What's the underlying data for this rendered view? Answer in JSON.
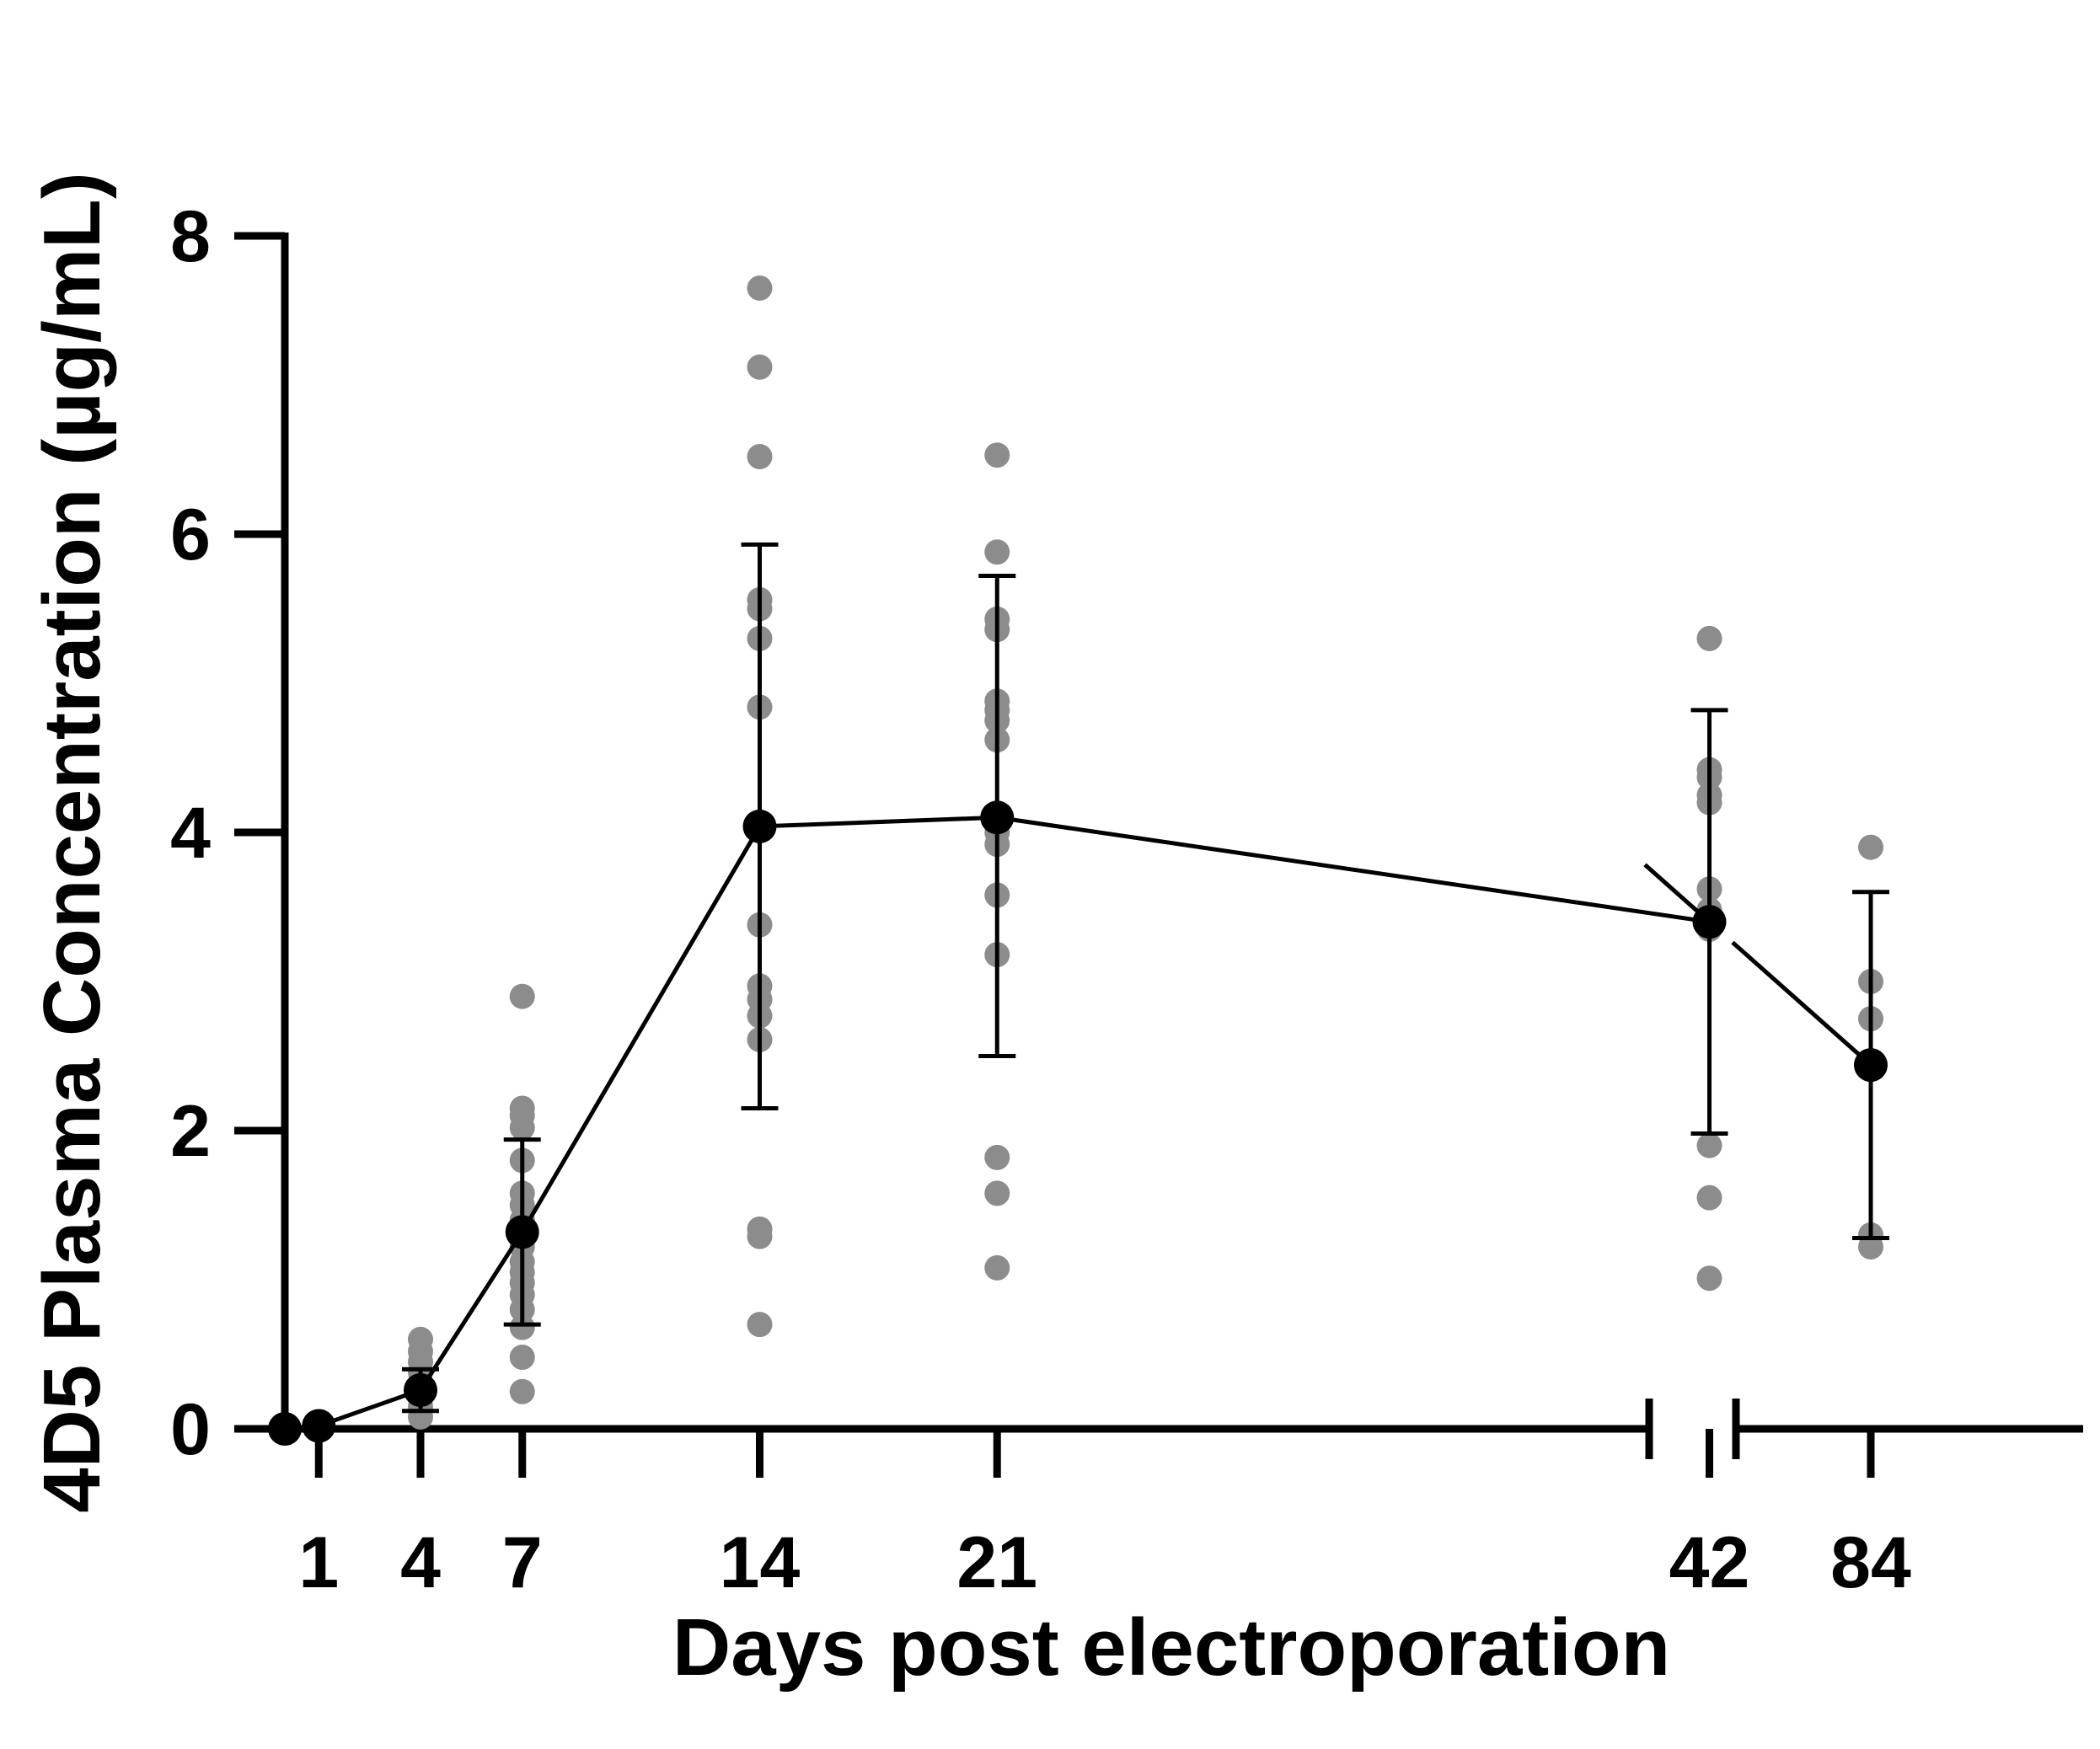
{
  "chart_data": {
    "type": "scatter",
    "xlabel": "Days post electroporation",
    "ylabel": "4D5 Plasma Concentration (µg/mL)",
    "ylim": [
      0,
      8
    ],
    "yticks": [
      "0",
      "2",
      "4",
      "6",
      "8"
    ],
    "x_axis_break": {
      "between": [
        42,
        84
      ]
    },
    "xticks": [
      "1",
      "4",
      "7",
      "14",
      "21",
      "42",
      "84"
    ],
    "grid": false,
    "legend": "none",
    "colors": {
      "mean": "#000000",
      "individual": "#8c8c8c"
    },
    "mean_series": {
      "x": [
        0,
        1,
        4,
        7,
        14,
        21,
        42,
        84
      ],
      "y": [
        0,
        0.02,
        0.26,
        1.32,
        4.04,
        4.1,
        3.4,
        2.44
      ],
      "err_low": [
        null,
        null,
        0.12,
        0.7,
        2.15,
        2.5,
        1.98,
        1.28
      ],
      "err_high": [
        null,
        null,
        0.4,
        1.94,
        5.93,
        5.72,
        4.82,
        3.6
      ]
    },
    "individual_points": [
      {
        "x": 4,
        "values": [
          0.6,
          0.52,
          0.45,
          0.38,
          0.3,
          0.22,
          0.15,
          0.08
        ]
      },
      {
        "x": 7,
        "values": [
          2.9,
          2.15,
          2.1,
          2.02,
          1.8,
          1.58,
          1.5,
          1.4,
          1.3,
          1.22,
          1.12,
          1.05,
          0.98,
          0.9,
          0.8,
          0.68,
          0.48,
          0.25
        ]
      },
      {
        "x": 14,
        "values": [
          7.65,
          7.12,
          6.52,
          5.56,
          5.5,
          5.3,
          4.84,
          4.05,
          3.38,
          2.97,
          2.88,
          2.77,
          2.61,
          1.34,
          1.29,
          0.7
        ]
      },
      {
        "x": 21,
        "values": [
          6.53,
          5.88,
          5.43,
          5.36,
          4.88,
          4.82,
          4.75,
          4.62,
          4.0,
          3.92,
          3.58,
          3.18,
          1.82,
          1.58,
          1.08
        ]
      },
      {
        "x": 42,
        "values": [
          5.3,
          4.42,
          4.37,
          4.25,
          4.2,
          3.62,
          3.48,
          3.35,
          1.9,
          1.55,
          1.01
        ]
      },
      {
        "x": 84,
        "values": [
          3.9,
          3.0,
          2.75,
          1.3,
          1.22
        ]
      }
    ]
  }
}
